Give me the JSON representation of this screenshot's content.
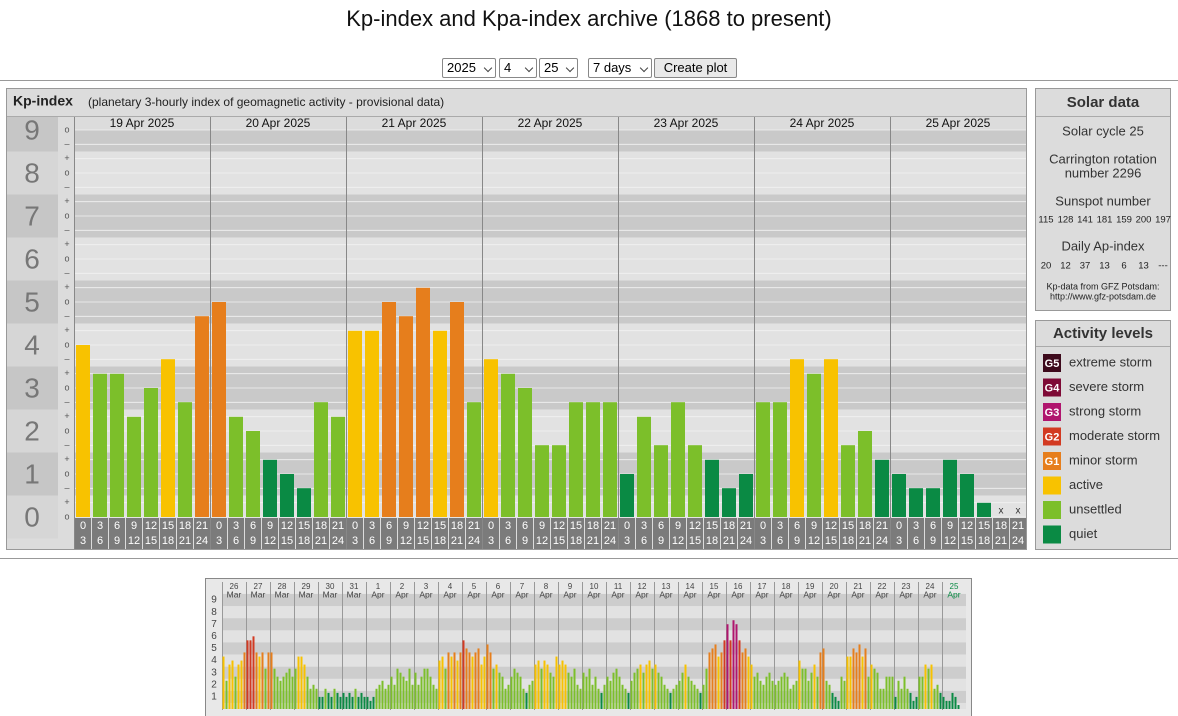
{
  "header": {
    "title": "Kp-index and Kpa-index archive (1868 to present)"
  },
  "controls": {
    "year": "2025",
    "month": "4",
    "day": "25",
    "span": "7 days",
    "button": "Create plot"
  },
  "chart_data": [
    {
      "type": "bar",
      "title": "Kp-index",
      "subtitle": "(planetary 3-hourly index of geomagnetic activity - provisional data)",
      "days": [
        "19 Apr 2025",
        "20 Apr 2025",
        "21 Apr 2025",
        "22 Apr 2025",
        "23 Apr 2025",
        "24 Apr 2025",
        "25 Apr 2025"
      ],
      "hour_starts": [
        0,
        3,
        6,
        9,
        12,
        15,
        18,
        21
      ],
      "hour_ends": [
        3,
        6,
        9,
        12,
        15,
        18,
        21,
        24
      ],
      "values": [
        4,
        3.33,
        3.33,
        2.33,
        3,
        3.67,
        2.67,
        4.67,
        5,
        2.33,
        2,
        1.33,
        1,
        0.67,
        2.67,
        2.33,
        4.33,
        4.33,
        5,
        4.67,
        5.33,
        4.33,
        5,
        2.67,
        3.67,
        3.33,
        3,
        1.67,
        1.67,
        2.67,
        2.67,
        2.67,
        1,
        2.33,
        1.67,
        2.67,
        1.67,
        1.33,
        0.67,
        1,
        2.67,
        2.67,
        3.67,
        3.33,
        3.67,
        1.67,
        2,
        1.33,
        1,
        0.67,
        0.67,
        1.33,
        1,
        0.33,
        null,
        null
      ],
      "missing_label": "x",
      "ylim": [
        0,
        9
      ],
      "yticks": [
        0,
        1,
        2,
        3,
        4,
        5,
        6,
        7,
        8,
        9
      ],
      "subtick_labels": [
        "o",
        "+",
        "–"
      ]
    },
    {
      "type": "bar",
      "days": [
        "26",
        "27",
        "28",
        "29",
        "30",
        "31",
        "1",
        "2",
        "3",
        "4",
        "5",
        "6",
        "7",
        "8",
        "9",
        "10",
        "11",
        "12",
        "13",
        "14",
        "15",
        "16",
        "17",
        "18",
        "19",
        "20",
        "21",
        "22",
        "23",
        "24",
        "25"
      ],
      "months": [
        "Mar",
        "Mar",
        "Mar",
        "Mar",
        "Mar",
        "Mar",
        "Apr",
        "Apr",
        "Apr",
        "Apr",
        "Apr",
        "Apr",
        "Apr",
        "Apr",
        "Apr",
        "Apr",
        "Apr",
        "Apr",
        "Apr",
        "Apr",
        "Apr",
        "Apr",
        "Apr",
        "Apr",
        "Apr",
        "Apr",
        "Apr",
        "Apr",
        "Apr",
        "Apr",
        "Apr"
      ],
      "values": [
        4.33,
        2.33,
        3.67,
        4,
        2.67,
        3.67,
        4,
        4.67,
        5.67,
        5.67,
        6,
        4.67,
        4.33,
        4.67,
        3.33,
        4.67,
        4.67,
        3.33,
        2.67,
        2.33,
        2.67,
        3,
        3.33,
        2.67,
        3.33,
        4.33,
        4.33,
        3.67,
        2.67,
        1.67,
        2,
        1.67,
        1,
        1,
        1.67,
        1.33,
        1,
        1.67,
        1.33,
        1,
        1.33,
        1,
        1.33,
        1,
        1.67,
        1,
        1.33,
        1,
        1,
        0.67,
        1,
        1.67,
        2,
        2.33,
        1.67,
        2,
        2.67,
        2,
        3.33,
        3,
        2.67,
        2.33,
        3.33,
        2,
        3,
        2,
        2.67,
        3.33,
        3.33,
        2.67,
        2,
        1.67,
        4,
        4.33,
        3.33,
        4.67,
        4.33,
        4.67,
        4,
        4.67,
        5.67,
        5,
        4.67,
        4.33,
        4.67,
        5,
        3.67,
        4.33,
        5.33,
        4.67,
        3.33,
        3.67,
        3,
        2.67,
        1.67,
        2,
        2.67,
        3.33,
        3,
        2.67,
        1.67,
        1.33,
        2,
        2.33,
        3.67,
        4,
        3.33,
        4,
        3.67,
        3,
        2.67,
        4.33,
        3.67,
        4,
        3.67,
        3,
        2.67,
        3.33,
        2,
        1.67,
        3,
        2.67,
        3.33,
        2,
        2.67,
        1.67,
        1.33,
        2,
        2.67,
        2.33,
        3,
        3.33,
        2.67,
        2,
        1.67,
        1.33,
        2.33,
        3,
        3.33,
        3.67,
        3,
        3.67,
        4,
        3.33,
        3.67,
        3,
        2.67,
        2,
        1.67,
        1.33,
        1.67,
        2,
        2.33,
        3,
        3.67,
        2.67,
        2.33,
        2,
        1.67,
        1.33,
        2,
        3.33,
        4.67,
        5,
        5.33,
        4.33,
        4.67,
        5.67,
        7,
        5.67,
        7.33,
        7,
        5.67,
        4.67,
        5,
        4.33,
        3.67,
        2.67,
        3,
        2.33,
        2,
        2.67,
        3,
        2.33,
        2,
        2.33,
        2.67,
        3,
        2.67,
        1.67,
        2,
        2.33,
        4,
        3.33,
        3.33,
        2.33,
        3,
        3.67,
        2.67,
        4.67,
        5,
        2.33,
        2,
        1.33,
        1,
        0.67,
        2.67,
        2.33,
        4.33,
        4.33,
        5,
        4.67,
        5.33,
        4.33,
        5,
        2.67,
        3.67,
        3.33,
        3,
        1.67,
        1.67,
        2.67,
        2.67,
        2.67,
        1,
        2.33,
        1.67,
        2.67,
        1.67,
        1.33,
        0.67,
        1,
        2.67,
        2.67,
        3.67,
        3.33,
        3.67,
        1.67,
        2,
        1.33,
        1,
        0.67,
        0.67,
        1.33,
        1,
        0.33,
        null,
        null
      ],
      "ylim": [
        0,
        9
      ],
      "yticks": [
        1,
        2,
        3,
        4,
        5,
        6,
        7,
        8,
        9
      ],
      "current_color": "#0a8a44"
    }
  ],
  "solar_data": {
    "title": "Solar data",
    "cycle": "Solar cycle 25",
    "carrington": [
      "Carrington rotation",
      "number 2296"
    ],
    "sunspot_title": "Sunspot number",
    "sunspot": [
      115,
      128,
      141,
      181,
      159,
      200,
      197
    ],
    "ap_title": "Daily Ap-index",
    "ap": [
      20,
      12,
      37,
      13,
      6,
      13,
      "---"
    ],
    "credit": [
      "Kp-data from GFZ Potsdam:",
      "http://www.gfz-potsdam.de"
    ]
  },
  "activity_levels": {
    "title": "Activity levels",
    "levels": [
      {
        "badge": "G5",
        "name": "extreme storm",
        "color": "#3d0a1c"
      },
      {
        "badge": "G4",
        "name": "severe storm",
        "color": "#7e0a36"
      },
      {
        "badge": "G3",
        "name": "strong storm",
        "color": "#b0156e"
      },
      {
        "badge": "G2",
        "name": "moderate storm",
        "color": "#d23a22"
      },
      {
        "badge": "G1",
        "name": "minor storm",
        "color": "#e67e1c"
      },
      {
        "badge": "",
        "name": "active",
        "color": "#f8c200"
      },
      {
        "badge": "",
        "name": "unsettled",
        "color": "#7cbf2a"
      },
      {
        "badge": "",
        "name": "quiet",
        "color": "#0a8a44"
      }
    ]
  }
}
